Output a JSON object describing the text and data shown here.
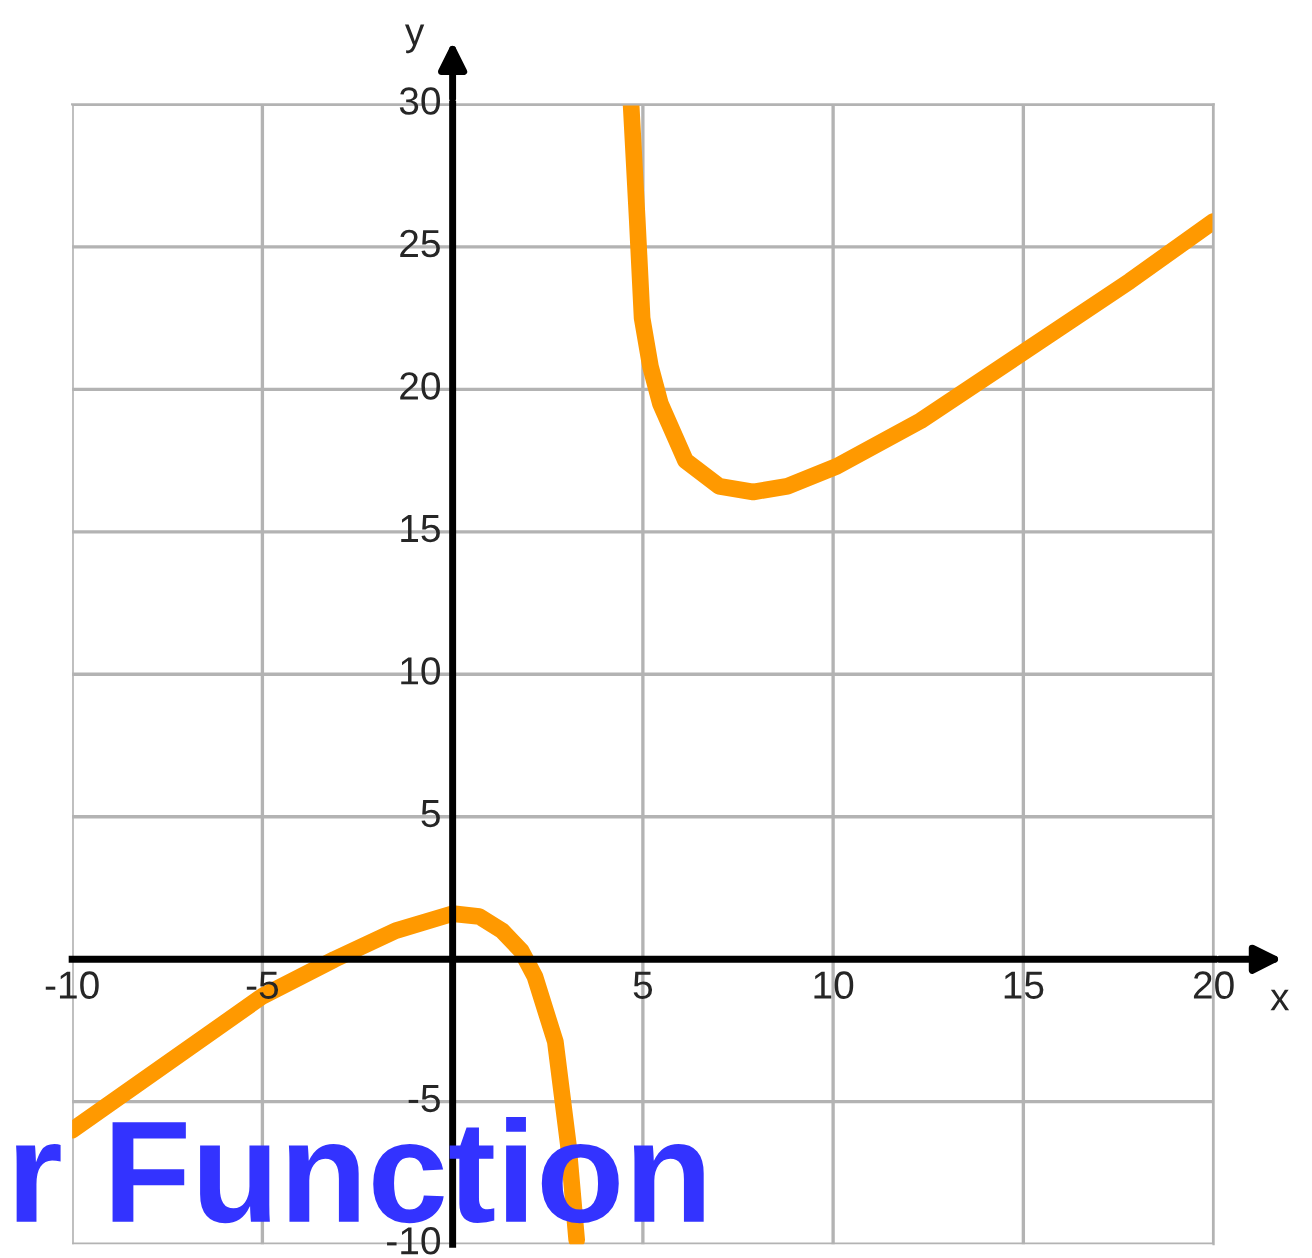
{
  "chart_data": {
    "type": "line",
    "xlabel": "x",
    "ylabel": "y",
    "xlim": [
      -10,
      20
    ],
    "ylim": [
      -10,
      30
    ],
    "xticks": [
      -10,
      -5,
      5,
      10,
      15,
      20
    ],
    "yticks": [
      -10,
      -5,
      5,
      10,
      15,
      20,
      25,
      30
    ],
    "grid": true,
    "marker": "none",
    "line_style": "solid",
    "annotations": [
      "r Function"
    ],
    "series": [
      {
        "color": "#ff9900",
        "x": [
          -10,
          -5,
          -3.1,
          -1.5,
          0,
          0.7,
          1.3,
          1.8,
          2.16,
          2.7,
          3.04,
          3.26
        ],
        "values": [
          -6.0,
          -1.3,
          0,
          1.0,
          1.6,
          1.5,
          1.0,
          0.3,
          -0.6,
          -2.9,
          -6.5,
          -9.85
        ]
      },
      {
        "color": "#ff9900",
        "x": [
          4.69,
          4.85,
          4.98,
          5.2,
          5.46,
          6.12,
          7.0,
          7.9,
          8.8,
          10.1,
          12.3,
          15.0,
          17.8,
          20
        ],
        "values": [
          30,
          26,
          22.5,
          20.8,
          19.5,
          17.5,
          16.6,
          16.4,
          16.6,
          17.3,
          18.9,
          21.3,
          23.8,
          25.9
        ]
      }
    ]
  }
}
